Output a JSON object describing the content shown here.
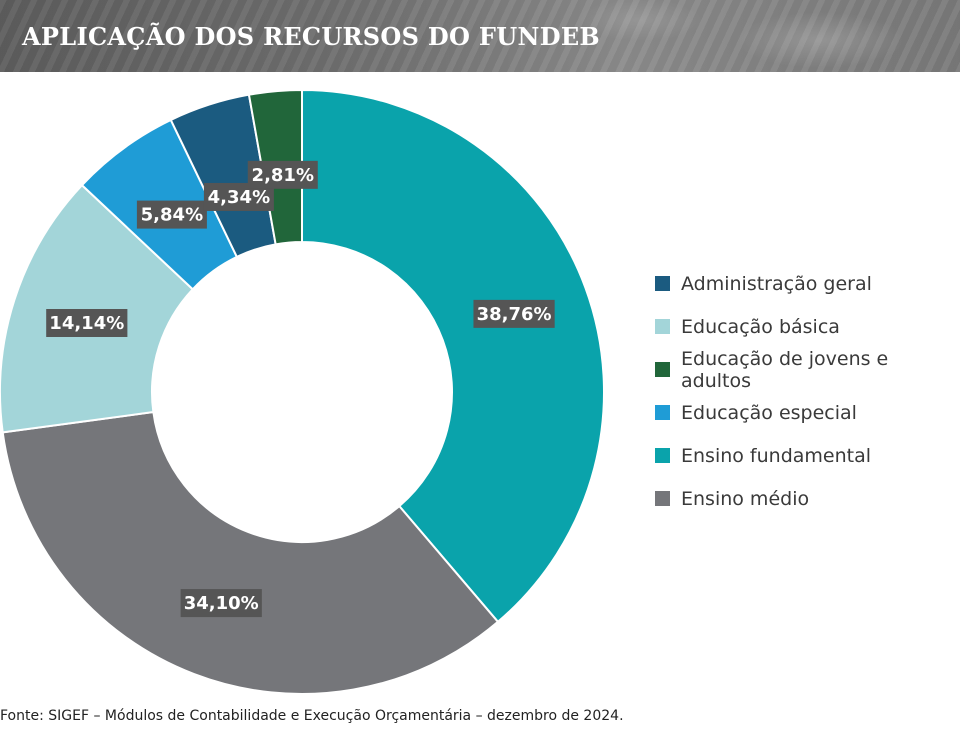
{
  "header": {
    "title": "APLICAÇÃO DOS RECURSOS DO FUNDEB"
  },
  "chart_data": {
    "type": "pie",
    "title": "APLICAÇÃO DOS RECURSOS DO FUNDEB",
    "donut": true,
    "slices": [
      {
        "name": "Ensino fundamental",
        "value": 38.76,
        "label": "38,76%",
        "color": "#0aa3ab"
      },
      {
        "name": "Ensino médio",
        "value": 34.1,
        "label": "34,10%",
        "color": "#75767a"
      },
      {
        "name": "Educação básica",
        "value": 14.14,
        "label": "14,14%",
        "color": "#a3d5d9"
      },
      {
        "name": "Educação especial",
        "value": 5.84,
        "label": "5,84%",
        "color": "#1f9cd6"
      },
      {
        "name": "Administração geral",
        "value": 4.34,
        "label": "4,34%",
        "color": "#1b5b80"
      },
      {
        "name": "Educação de jovens e adultos",
        "value": 2.81,
        "label": "2,81%",
        "color": "#21663a"
      }
    ],
    "label_box_color": "#555555",
    "legend_position": "right"
  },
  "legend": {
    "items": [
      {
        "label": "Administração geral",
        "color": "#1b5b80"
      },
      {
        "label": "Educação básica",
        "color": "#a3d5d9"
      },
      {
        "label": "Educação de jovens e adultos",
        "color": "#21663a"
      },
      {
        "label": "Educação especial",
        "color": "#1f9cd6"
      },
      {
        "label": "Ensino fundamental",
        "color": "#0aa3ab"
      },
      {
        "label": "Ensino médio",
        "color": "#75767a"
      }
    ]
  },
  "footer": {
    "source": "Fonte: SIGEF – Módulos de Contabilidade e Execução Orçamentária – dezembro de 2024."
  }
}
